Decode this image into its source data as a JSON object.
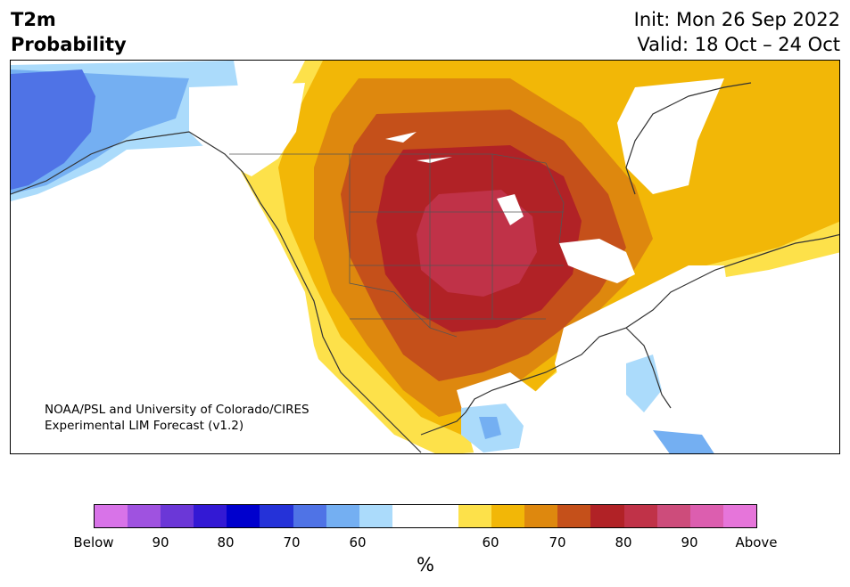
{
  "header": {
    "title_line1": "T2m",
    "title_line2": "Probability",
    "init": "Init: Mon 26 Sep 2022",
    "valid": "Valid: 18 Oct – 24 Oct"
  },
  "map": {
    "credit_line1": "NOAA/PSL and University of Colorado/CIRES",
    "credit_line2": "Experimental LIM Forecast (v1.2)"
  },
  "colorbar": {
    "unit_label": "%",
    "tick_labels": [
      "Below",
      "90",
      "80",
      "70",
      "60",
      "60",
      "70",
      "80",
      "90",
      "Above"
    ],
    "colors": [
      "#d873e8",
      "#9f52e0",
      "#6b37d7",
      "#3319d4",
      "#0000cd",
      "#2532d8",
      "#4f73e6",
      "#74aff2",
      "#abdbfb",
      "#ffffff",
      "#ffffff",
      "#fde14a",
      "#f2b707",
      "#de880e",
      "#c5501a",
      "#b12226",
      "#c03248",
      "#cd4c7b",
      "#dc5eaf",
      "#e675da"
    ]
  },
  "legend_classes": {
    "below_light_blue": "#abdbfb",
    "below_mid_blue": "#74aff2",
    "below_blue": "#4f73e6",
    "above_yellow": "#fde14a",
    "above_gold": "#f2b707",
    "above_orange": "#de880e",
    "above_dark_orange": "#c5501a",
    "above_red": "#b12226",
    "above_crimson": "#c03248"
  }
}
